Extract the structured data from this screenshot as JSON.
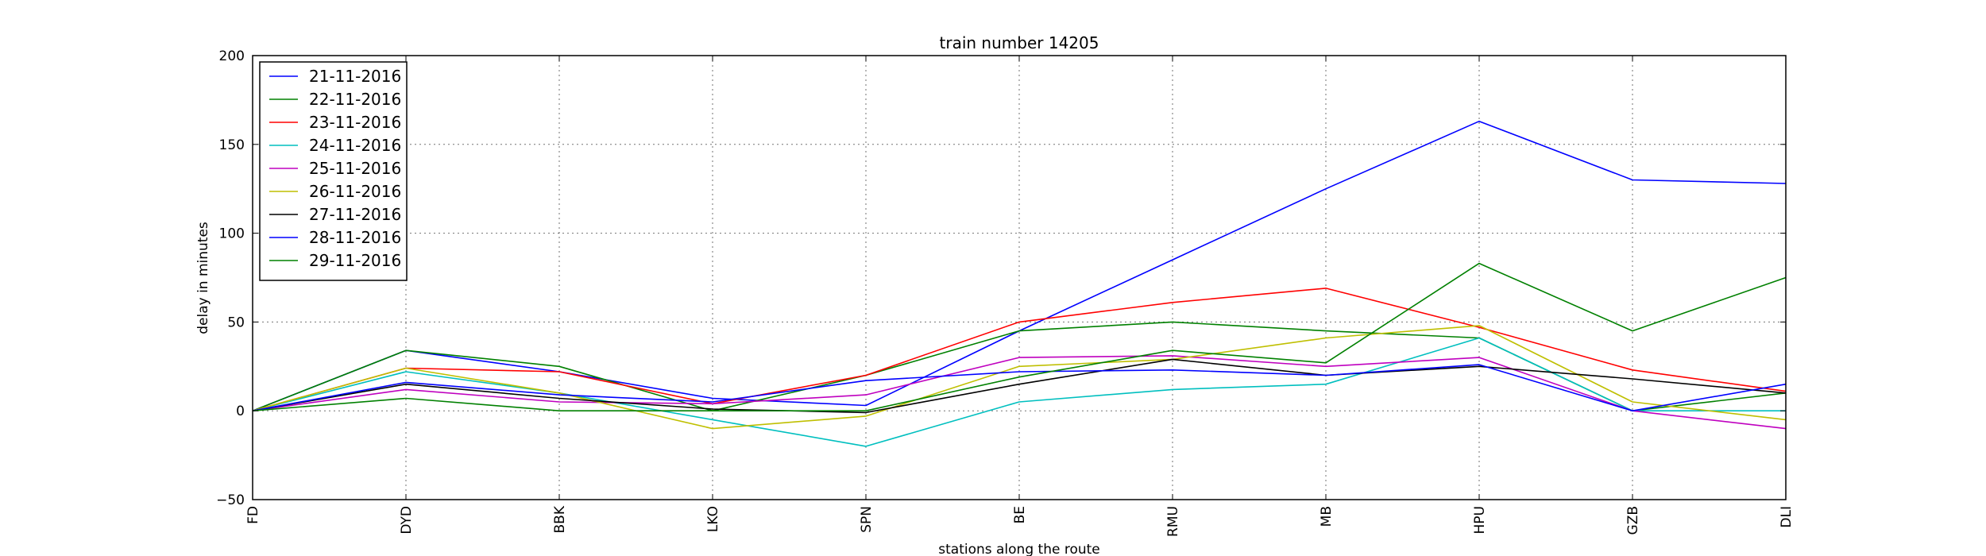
{
  "chart_data": {
    "type": "line",
    "title": "train number 14205",
    "xlabel": "stations along the route",
    "ylabel": "delay in minutes",
    "categories": [
      "FD",
      "DYD",
      "BBK",
      "LKO",
      "SPN",
      "BE",
      "RMU",
      "MB",
      "HPU",
      "GZB",
      "DLI"
    ],
    "ylim": [
      -50,
      200
    ],
    "yticks": [
      "-50",
      "0",
      "50",
      "100",
      "150",
      "200"
    ],
    "grid": true,
    "legend_position": "top-left",
    "series": [
      {
        "name": "21-11-2016",
        "color": "#0000ff",
        "values": [
          0,
          34,
          22,
          7,
          3,
          45,
          85,
          125,
          163,
          130,
          128
        ]
      },
      {
        "name": "22-11-2016",
        "color": "#008000",
        "values": [
          0,
          34,
          25,
          0,
          20,
          45,
          50,
          45,
          41,
          0,
          10
        ]
      },
      {
        "name": "23-11-2016",
        "color": "#ff0000",
        "values": [
          0,
          24,
          22,
          4,
          20,
          50,
          61,
          69,
          47,
          23,
          11
        ]
      },
      {
        "name": "24-11-2016",
        "color": "#00bfbf",
        "values": [
          0,
          22,
          10,
          -5,
          -20,
          5,
          12,
          15,
          41,
          0,
          0
        ]
      },
      {
        "name": "25-11-2016",
        "color": "#bf00bf",
        "values": [
          0,
          12,
          5,
          4,
          9,
          30,
          31,
          25,
          30,
          0,
          -10
        ]
      },
      {
        "name": "26-11-2016",
        "color": "#bfbf00",
        "values": [
          0,
          24,
          10,
          -10,
          -3,
          25,
          29,
          41,
          48,
          5,
          -5
        ]
      },
      {
        "name": "27-11-2016",
        "color": "#000000",
        "values": [
          0,
          15,
          7,
          1,
          -1,
          15,
          29,
          20,
          25,
          18,
          10
        ]
      },
      {
        "name": "28-11-2016",
        "color": "#0000ff",
        "values": [
          0,
          16,
          9,
          5,
          17,
          22,
          23,
          20,
          26,
          0,
          15
        ]
      },
      {
        "name": "29-11-2016",
        "color": "#008000",
        "values": [
          0,
          7,
          0,
          0,
          0,
          19,
          34,
          27,
          83,
          45,
          75
        ]
      }
    ]
  }
}
